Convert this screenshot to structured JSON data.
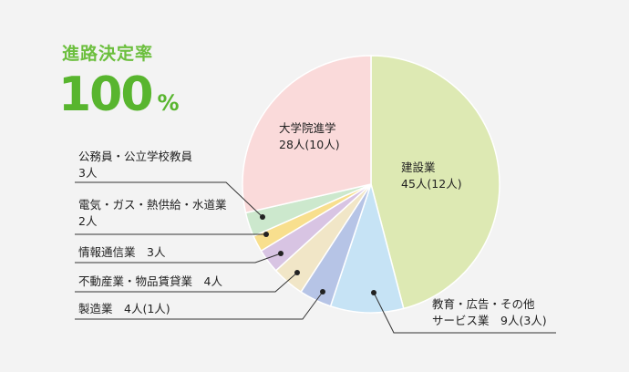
{
  "headline": "進路決定率",
  "rate": {
    "value": "100",
    "unit": "%"
  },
  "chart_data": {
    "type": "pie",
    "total_label_note": "",
    "slices": [
      {
        "name": "建設業",
        "value": 45,
        "value_label": "45人(12人)",
        "color": "#dde9b3"
      },
      {
        "name": "教育・広告・その他サービス業",
        "name_lines": [
          "教育・広告・その他",
          "サービス業"
        ],
        "value": 9,
        "value_label": "9人(3人)",
        "color": "#c6e3f5"
      },
      {
        "name": "製造業",
        "value": 4,
        "value_label": "4人(1人)",
        "color": "#b6c4e6"
      },
      {
        "name": "不動産業・物品賃貸業",
        "value": 4,
        "value_label": "4人",
        "color": "#f1e6c7"
      },
      {
        "name": "情報通信業",
        "value": 3,
        "value_label": "3人",
        "color": "#d8c4e3"
      },
      {
        "name": "電気・ガス・熱供給・水道業",
        "value": 2,
        "value_label": "2人",
        "color": "#f8df8e"
      },
      {
        "name": "公務員・公立学校教員",
        "value": 3,
        "value_label": "3人",
        "color": "#cce8cd"
      },
      {
        "name": "大学院進学",
        "value": 28,
        "value_label": "28人(10人)",
        "color": "#fadada"
      }
    ]
  }
}
